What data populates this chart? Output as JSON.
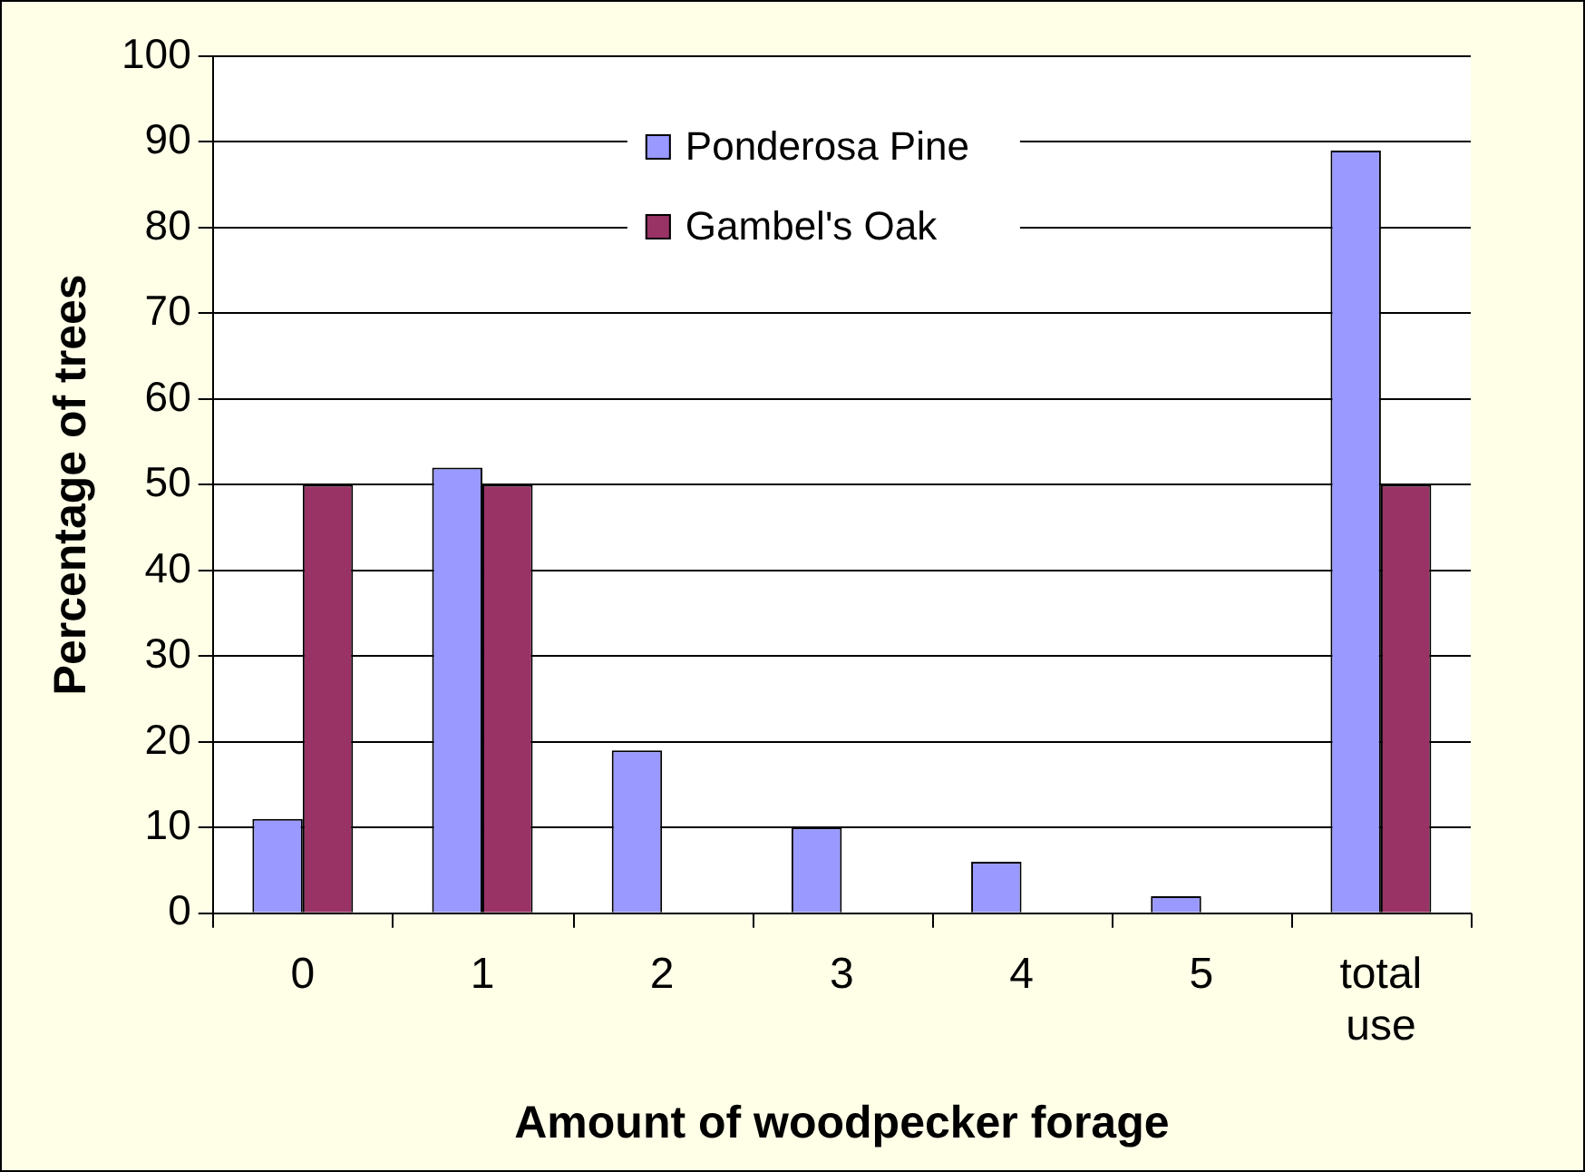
{
  "chart_data": {
    "type": "bar",
    "xlabel": "Amount of woodpecker forage",
    "ylabel": "Percentage of trees",
    "categories": [
      "0",
      "1",
      "2",
      "3",
      "4",
      "5",
      "total use"
    ],
    "series": [
      {
        "name": "Ponderosa Pine",
        "color": "#9999ff",
        "values": [
          11,
          52,
          19,
          10,
          6,
          2,
          89
        ]
      },
      {
        "name": "Gambel's Oak",
        "color": "#993366",
        "values": [
          50,
          50,
          0,
          0,
          0,
          0,
          50
        ]
      }
    ],
    "ylim": [
      0,
      100
    ],
    "yticks": [
      0,
      10,
      20,
      30,
      40,
      50,
      60,
      70,
      80,
      90,
      100
    ],
    "grid": "y",
    "legend": "top"
  }
}
